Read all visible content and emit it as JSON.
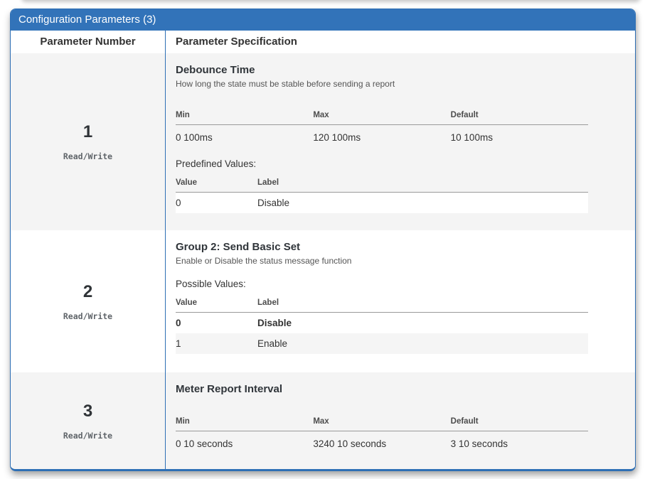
{
  "card": {
    "title": "Configuration Parameters (3)",
    "columns": {
      "number": "Parameter Number",
      "specification": "Parameter Specification"
    }
  },
  "labels": {
    "min": "Min",
    "max": "Max",
    "default": "Default",
    "value": "Value",
    "label": "Label",
    "predefined_values": "Predefined Values:",
    "possible_values": "Possible Values:"
  },
  "colors": {
    "accent_blue": "#3273b9",
    "row_shade": "#f4f4f4",
    "zebra_shade": "#f5f5f5"
  },
  "parameters": [
    {
      "number": "1",
      "access": "Read/Write",
      "name": "Debounce Time",
      "description": "How long the state must be stable before sending a report",
      "range": {
        "min": "0 100ms",
        "max": "120 100ms",
        "default": "10 100ms"
      },
      "values": [
        {
          "value": "0",
          "label": "Disable"
        }
      ]
    },
    {
      "number": "2",
      "access": "Read/Write",
      "name": "Group 2: Send Basic Set",
      "description": "Enable or Disable the status message function",
      "values": [
        {
          "value": "0",
          "label": "Disable"
        },
        {
          "value": "1",
          "label": "Enable"
        }
      ]
    },
    {
      "number": "3",
      "access": "Read/Write",
      "name": "Meter Report Interval",
      "range": {
        "min": "0 10 seconds",
        "max": "3240 10 seconds",
        "default": "3 10 seconds"
      }
    }
  ]
}
